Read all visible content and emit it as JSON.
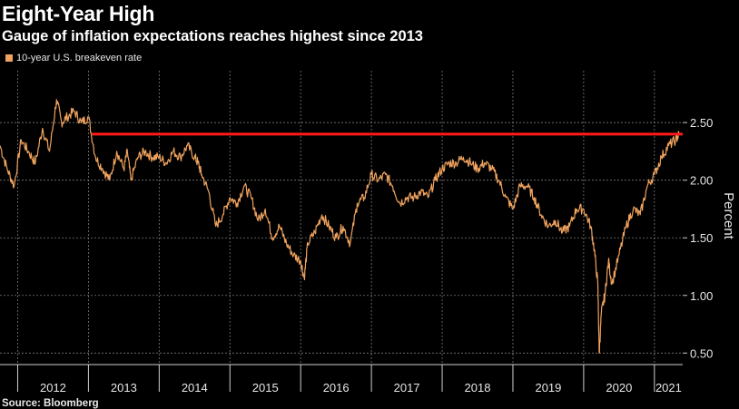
{
  "header": {
    "title": "Eight-Year High",
    "subtitle": "Gauge of inflation expectations reaches highest since 2013"
  },
  "footer": {
    "source": "Source: Bloomberg"
  },
  "colors": {
    "series": "#f0a35e",
    "reference_line": "#ff1a1a",
    "background": "#000000",
    "grid": "#7a7a7a"
  },
  "chart_data": {
    "type": "line",
    "title": "Eight-Year High",
    "subtitle": "Gauge of inflation expectations reaches highest since 2013",
    "ylabel": "Percent",
    "xlabel": "",
    "y_axis_position": "right",
    "ylim": [
      0.4,
      2.95
    ],
    "yticks": [
      0.5,
      1.0,
      1.5,
      2.0,
      2.5
    ],
    "ytick_labels": [
      "0.50",
      "1.00",
      "1.50",
      "2.00",
      "2.50"
    ],
    "xlim": [
      2011.75,
      2021.4
    ],
    "xticks": [
      "2012",
      "2013",
      "2014",
      "2015",
      "2016",
      "2017",
      "2018",
      "2019",
      "2020",
      "2021"
    ],
    "grid": true,
    "legend": {
      "position": "top-left",
      "entries": [
        "10-year U.S. breakeven rate"
      ]
    },
    "reference_line": {
      "y": 2.4,
      "x_start": 2013.05,
      "x_end": 2021.4
    },
    "series": [
      {
        "name": "10-year U.S. breakeven rate",
        "x": [
          2011.75,
          2011.85,
          2011.95,
          2012.05,
          2012.15,
          2012.25,
          2012.35,
          2012.45,
          2012.55,
          2012.62,
          2012.7,
          2012.8,
          2012.9,
          2013.0,
          2013.1,
          2013.2,
          2013.3,
          2013.4,
          2013.5,
          2013.55,
          2013.6,
          2013.7,
          2013.8,
          2013.9,
          2014.0,
          2014.1,
          2014.2,
          2014.3,
          2014.4,
          2014.5,
          2014.55,
          2014.6,
          2014.7,
          2014.8,
          2014.9,
          2015.0,
          2015.1,
          2015.2,
          2015.3,
          2015.4,
          2015.5,
          2015.6,
          2015.7,
          2015.8,
          2015.9,
          2016.0,
          2016.05,
          2016.1,
          2016.2,
          2016.3,
          2016.4,
          2016.5,
          2016.6,
          2016.7,
          2016.8,
          2016.9,
          2017.0,
          2017.1,
          2017.2,
          2017.3,
          2017.4,
          2017.5,
          2017.6,
          2017.7,
          2017.8,
          2017.9,
          2018.0,
          2018.1,
          2018.2,
          2018.3,
          2018.4,
          2018.5,
          2018.6,
          2018.7,
          2018.8,
          2018.9,
          2019.0,
          2019.1,
          2019.2,
          2019.3,
          2019.4,
          2019.5,
          2019.6,
          2019.7,
          2019.8,
          2019.9,
          2020.0,
          2020.1,
          2020.15,
          2020.2,
          2020.22,
          2020.25,
          2020.3,
          2020.35,
          2020.4,
          2020.5,
          2020.6,
          2020.7,
          2020.8,
          2020.9,
          2021.0,
          2021.1,
          2021.2,
          2021.3,
          2021.35
        ],
        "values": [
          2.3,
          2.1,
          1.95,
          2.35,
          2.25,
          2.15,
          2.45,
          2.25,
          2.7,
          2.5,
          2.55,
          2.6,
          2.5,
          2.55,
          2.2,
          2.1,
          2.0,
          2.25,
          2.1,
          2.25,
          2.0,
          2.2,
          2.25,
          2.2,
          2.2,
          2.15,
          2.25,
          2.2,
          2.3,
          2.2,
          2.15,
          2.05,
          1.9,
          1.6,
          1.7,
          1.85,
          1.8,
          1.95,
          1.85,
          1.65,
          1.75,
          1.5,
          1.6,
          1.45,
          1.35,
          1.3,
          1.15,
          1.45,
          1.55,
          1.7,
          1.6,
          1.5,
          1.6,
          1.45,
          1.8,
          1.85,
          2.05,
          2.0,
          2.05,
          1.95,
          1.8,
          1.85,
          1.85,
          1.9,
          1.85,
          2.0,
          2.1,
          2.15,
          2.15,
          2.2,
          2.15,
          2.1,
          2.15,
          2.1,
          2.0,
          1.85,
          1.75,
          1.95,
          1.95,
          1.85,
          1.7,
          1.6,
          1.65,
          1.55,
          1.6,
          1.75,
          1.75,
          1.6,
          1.4,
          1.1,
          0.5,
          0.85,
          1.0,
          1.3,
          1.1,
          1.35,
          1.6,
          1.75,
          1.7,
          1.95,
          2.05,
          2.2,
          2.3,
          2.35,
          2.4
        ]
      }
    ]
  }
}
